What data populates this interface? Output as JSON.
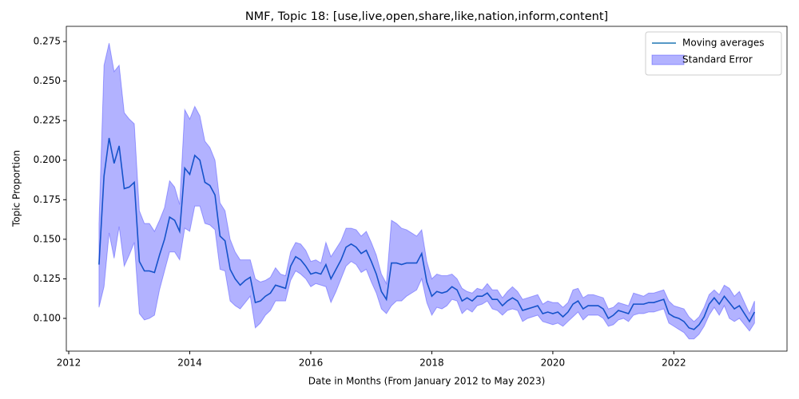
{
  "chart_data": {
    "type": "line",
    "title": "NMF, Topic 18: [use,live,open,share,like,nation,inform,content]",
    "xlabel": "Date in Months (From January 2012 to May 2023)",
    "ylabel": "Topic Proportion",
    "x": [
      2012.5,
      2012.583,
      2012.667,
      2012.75,
      2012.833,
      2012.917,
      2013,
      2013.083,
      2013.167,
      2013.25,
      2013.333,
      2013.417,
      2013.5,
      2013.583,
      2013.667,
      2013.75,
      2013.833,
      2013.917,
      2014,
      2014.083,
      2014.167,
      2014.25,
      2014.333,
      2014.417,
      2014.5,
      2014.583,
      2014.667,
      2014.75,
      2014.833,
      2014.917,
      2015,
      2015.083,
      2015.167,
      2015.25,
      2015.333,
      2015.417,
      2015.5,
      2015.583,
      2015.667,
      2015.75,
      2015.833,
      2015.917,
      2016,
      2016.083,
      2016.167,
      2016.25,
      2016.333,
      2016.417,
      2016.5,
      2016.583,
      2016.667,
      2016.75,
      2016.833,
      2016.917,
      2017,
      2017.083,
      2017.167,
      2017.25,
      2017.333,
      2017.417,
      2017.5,
      2017.583,
      2017.667,
      2017.75,
      2017.833,
      2017.917,
      2018,
      2018.083,
      2018.167,
      2018.25,
      2018.333,
      2018.417,
      2018.5,
      2018.583,
      2018.667,
      2018.75,
      2018.833,
      2018.917,
      2019,
      2019.083,
      2019.167,
      2019.25,
      2019.333,
      2019.417,
      2019.5,
      2019.583,
      2019.667,
      2019.75,
      2019.833,
      2019.917,
      2020,
      2020.083,
      2020.167,
      2020.25,
      2020.333,
      2020.417,
      2020.5,
      2020.583,
      2020.667,
      2020.75,
      2020.833,
      2020.917,
      2021,
      2021.083,
      2021.167,
      2021.25,
      2021.333,
      2021.417,
      2021.5,
      2021.583,
      2021.667,
      2021.75,
      2021.833,
      2021.917,
      2022,
      2022.083,
      2022.167,
      2022.25,
      2022.333,
      2022.417,
      2022.5,
      2022.583,
      2022.667,
      2022.75,
      2022.833,
      2022.917,
      2023,
      2023.083,
      2023.167,
      2023.25,
      2023.333
    ],
    "series": [
      {
        "name": "Moving averages",
        "color": "#1f77b4",
        "values": [
          0.134,
          0.19,
          0.214,
          0.198,
          0.209,
          0.182,
          0.183,
          0.186,
          0.136,
          0.13,
          0.13,
          0.129,
          0.14,
          0.15,
          0.164,
          0.162,
          0.155,
          0.195,
          0.191,
          0.203,
          0.2,
          0.186,
          0.184,
          0.178,
          0.152,
          0.149,
          0.131,
          0.125,
          0.121,
          0.124,
          0.126,
          0.11,
          0.111,
          0.114,
          0.116,
          0.121,
          0.12,
          0.119,
          0.133,
          0.139,
          0.137,
          0.133,
          0.128,
          0.129,
          0.128,
          0.134,
          0.125,
          0.131,
          0.137,
          0.145,
          0.147,
          0.145,
          0.141,
          0.143,
          0.136,
          0.128,
          0.117,
          0.112,
          0.135,
          0.135,
          0.134,
          0.135,
          0.135,
          0.135,
          0.141,
          0.123,
          0.114,
          0.117,
          0.116,
          0.117,
          0.12,
          0.118,
          0.111,
          0.113,
          0.111,
          0.114,
          0.114,
          0.116,
          0.112,
          0.112,
          0.108,
          0.111,
          0.113,
          0.111,
          0.105,
          0.106,
          0.107,
          0.108,
          0.103,
          0.104,
          0.103,
          0.104,
          0.101,
          0.104,
          0.109,
          0.111,
          0.106,
          0.108,
          0.108,
          0.108,
          0.106,
          0.1,
          0.102,
          0.105,
          0.104,
          0.103,
          0.109,
          0.109,
          0.109,
          0.11,
          0.11,
          0.111,
          0.112,
          0.103,
          0.101,
          0.1,
          0.098,
          0.094,
          0.093,
          0.096,
          0.101,
          0.109,
          0.113,
          0.109,
          0.114,
          0.11,
          0.106,
          0.108,
          0.103,
          0.098,
          0.104
        ]
      },
      {
        "name": "Standard Error",
        "color": "#0000ff",
        "upper": [
          0.16,
          0.26,
          0.274,
          0.256,
          0.26,
          0.23,
          0.226,
          0.223,
          0.168,
          0.16,
          0.16,
          0.155,
          0.162,
          0.17,
          0.187,
          0.183,
          0.172,
          0.232,
          0.226,
          0.234,
          0.228,
          0.212,
          0.208,
          0.2,
          0.173,
          0.168,
          0.15,
          0.142,
          0.137,
          0.137,
          0.137,
          0.125,
          0.123,
          0.124,
          0.126,
          0.132,
          0.128,
          0.127,
          0.142,
          0.148,
          0.147,
          0.143,
          0.136,
          0.137,
          0.135,
          0.148,
          0.139,
          0.144,
          0.149,
          0.157,
          0.157,
          0.156,
          0.152,
          0.155,
          0.148,
          0.14,
          0.128,
          0.122,
          0.162,
          0.16,
          0.157,
          0.156,
          0.154,
          0.152,
          0.156,
          0.136,
          0.125,
          0.128,
          0.127,
          0.127,
          0.128,
          0.125,
          0.119,
          0.117,
          0.116,
          0.119,
          0.118,
          0.122,
          0.118,
          0.118,
          0.113,
          0.117,
          0.12,
          0.117,
          0.112,
          0.113,
          0.114,
          0.115,
          0.109,
          0.111,
          0.11,
          0.11,
          0.107,
          0.11,
          0.118,
          0.119,
          0.113,
          0.115,
          0.115,
          0.114,
          0.113,
          0.106,
          0.107,
          0.11,
          0.109,
          0.108,
          0.116,
          0.115,
          0.114,
          0.116,
          0.116,
          0.117,
          0.118,
          0.111,
          0.108,
          0.107,
          0.106,
          0.101,
          0.098,
          0.101,
          0.107,
          0.115,
          0.118,
          0.115,
          0.121,
          0.119,
          0.114,
          0.117,
          0.11,
          0.103,
          0.111
        ],
        "lower": [
          0.107,
          0.12,
          0.154,
          0.138,
          0.158,
          0.133,
          0.14,
          0.148,
          0.103,
          0.099,
          0.1,
          0.102,
          0.118,
          0.13,
          0.142,
          0.142,
          0.137,
          0.157,
          0.155,
          0.171,
          0.171,
          0.16,
          0.159,
          0.156,
          0.131,
          0.13,
          0.111,
          0.108,
          0.106,
          0.11,
          0.114,
          0.094,
          0.097,
          0.102,
          0.105,
          0.111,
          0.111,
          0.111,
          0.124,
          0.13,
          0.128,
          0.125,
          0.12,
          0.122,
          0.121,
          0.12,
          0.11,
          0.117,
          0.125,
          0.133,
          0.136,
          0.134,
          0.129,
          0.131,
          0.123,
          0.116,
          0.106,
          0.103,
          0.108,
          0.111,
          0.111,
          0.114,
          0.116,
          0.118,
          0.125,
          0.11,
          0.102,
          0.107,
          0.106,
          0.108,
          0.112,
          0.111,
          0.103,
          0.106,
          0.104,
          0.108,
          0.109,
          0.111,
          0.106,
          0.105,
          0.102,
          0.105,
          0.106,
          0.105,
          0.098,
          0.1,
          0.101,
          0.102,
          0.098,
          0.097,
          0.096,
          0.097,
          0.095,
          0.098,
          0.101,
          0.104,
          0.099,
          0.102,
          0.102,
          0.102,
          0.1,
          0.095,
          0.096,
          0.099,
          0.1,
          0.098,
          0.102,
          0.103,
          0.103,
          0.104,
          0.104,
          0.105,
          0.106,
          0.097,
          0.095,
          0.093,
          0.091,
          0.087,
          0.087,
          0.09,
          0.095,
          0.102,
          0.107,
          0.102,
          0.108,
          0.1,
          0.098,
          0.1,
          0.096,
          0.092,
          0.097
        ]
      }
    ],
    "xlim": [
      2011.96,
      2023.87
    ],
    "xticks": [
      2012,
      2014,
      2016,
      2018,
      2020,
      2022
    ],
    "ylim": [
      0.0793,
      0.2846
    ],
    "yticks": [
      {
        "value": 0.1,
        "label": "0.100"
      },
      0.125,
      {
        "value": 0.15,
        "label": "0.150"
      },
      0.175,
      {
        "value": 0.2,
        "label": "0.200"
      },
      0.225,
      {
        "value": 0.25,
        "label": "0.250"
      },
      0.275
    ],
    "legend": "upper right"
  }
}
